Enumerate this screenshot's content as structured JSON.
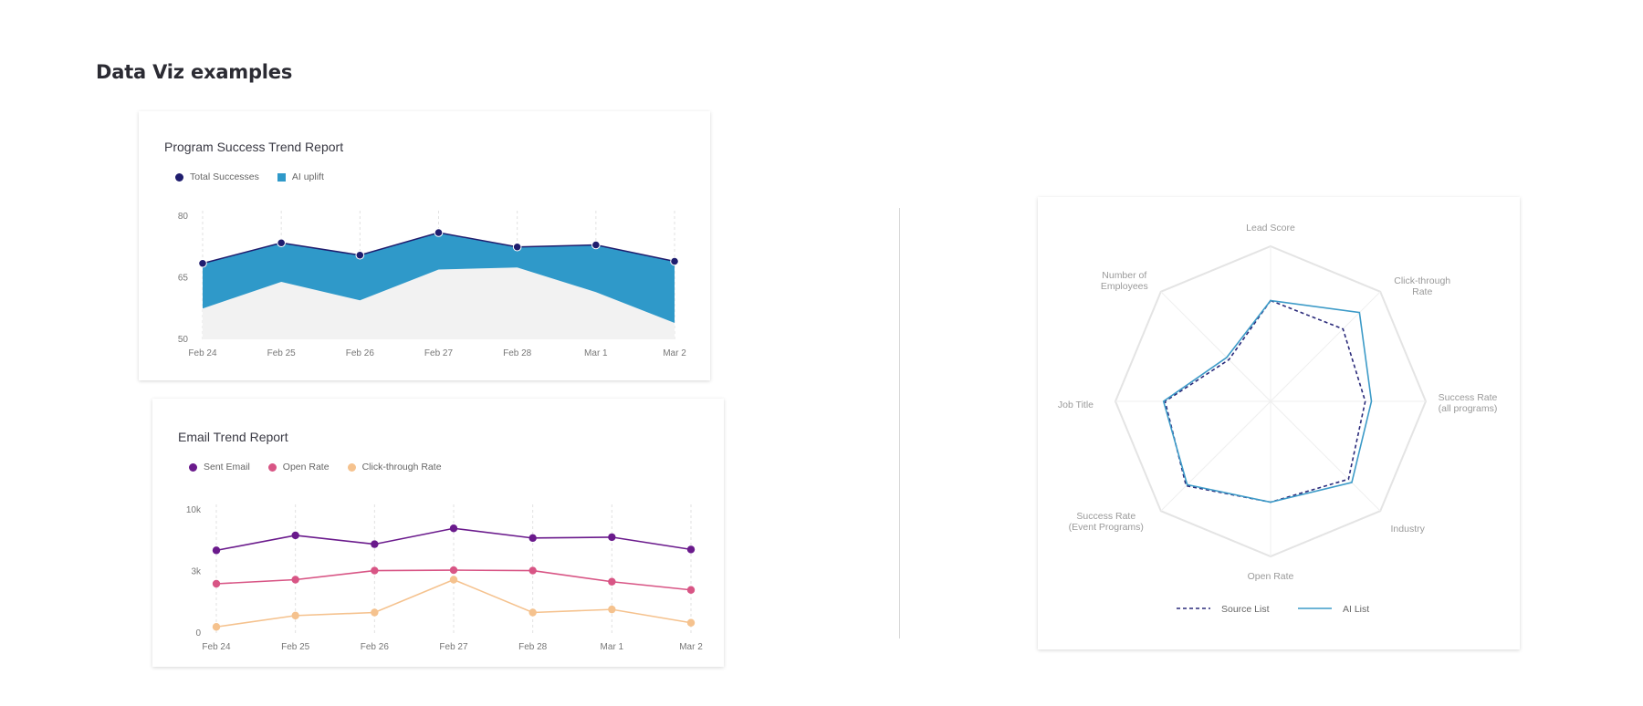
{
  "page_title": "Data Viz examples",
  "colors": {
    "navy": "#1f1d6e",
    "teal": "#2f99c9",
    "baseline_fill": "#f2f2f2",
    "purple": "#6a1a8c",
    "pink": "#d85585",
    "peach": "#f5c28e",
    "radar_source": "#2a2a7a",
    "radar_ai": "#3d9bc8",
    "grid": "#e4e4e4"
  },
  "chart_data": [
    {
      "type": "area",
      "title": "Program Success Trend Report",
      "categories": [
        "Feb 24",
        "Feb 25",
        "Feb 26",
        "Feb 27",
        "Feb 28",
        "Mar 1",
        "Mar 2"
      ],
      "ylim": [
        50,
        80
      ],
      "yticks": [
        "50",
        "65",
        "80"
      ],
      "series": [
        {
          "name": "Total Successes",
          "values": [
            68.5,
            73.5,
            70.5,
            76,
            72.5,
            73,
            69
          ]
        },
        {
          "name": "AI uplift",
          "values": [
            57.5,
            64,
            59.5,
            67,
            67.5,
            61.5,
            54
          ]
        }
      ],
      "grid": true,
      "legend": "top-left"
    },
    {
      "type": "line",
      "title": "Email Trend Report",
      "categories": [
        "Feb 24",
        "Feb 25",
        "Feb 26",
        "Feb 27",
        "Feb 28",
        "Mar 1",
        "Mar 2"
      ],
      "yticks": [
        "0",
        "3k",
        "10k"
      ],
      "series": [
        {
          "name": "Sent Email",
          "values": [
            5.4,
            7.1,
            6.1,
            7.9,
            6.8,
            6.9,
            5.5
          ]
        },
        {
          "name": "Open Rate",
          "values": [
            2.4,
            2.6,
            3.1,
            3.15,
            3.1,
            2.5,
            2.1
          ]
        },
        {
          "name": "Click-through Rate",
          "values": [
            0.3,
            0.85,
            1.0,
            2.6,
            1.0,
            1.15,
            0.5
          ]
        }
      ],
      "grid": true,
      "legend": "top-left"
    },
    {
      "type": "radar",
      "axes": [
        {
          "label_lines": [
            "Lead Score"
          ]
        },
        {
          "label_lines": [
            "Click-through",
            "Rate"
          ]
        },
        {
          "label_lines": [
            "Success Rate",
            "(all programs)"
          ]
        },
        {
          "label_lines": [
            "Industry"
          ]
        },
        {
          "label_lines": [
            "Open Rate"
          ]
        },
        {
          "label_lines": [
            "Success Rate",
            "(Event Programs)"
          ]
        },
        {
          "label_lines": [
            "Job Title"
          ]
        },
        {
          "label_lines": [
            "Number of",
            "Employees"
          ]
        }
      ],
      "range": [
        0,
        1
      ],
      "series": [
        {
          "name": "Source List",
          "style": "dashed",
          "values": [
            0.65,
            0.66,
            0.61,
            0.71,
            0.65,
            0.77,
            0.68,
            0.38
          ]
        },
        {
          "name": "AI List",
          "style": "solid",
          "values": [
            0.65,
            0.81,
            0.65,
            0.74,
            0.65,
            0.76,
            0.69,
            0.4
          ]
        }
      ],
      "legend": "bottom"
    }
  ]
}
